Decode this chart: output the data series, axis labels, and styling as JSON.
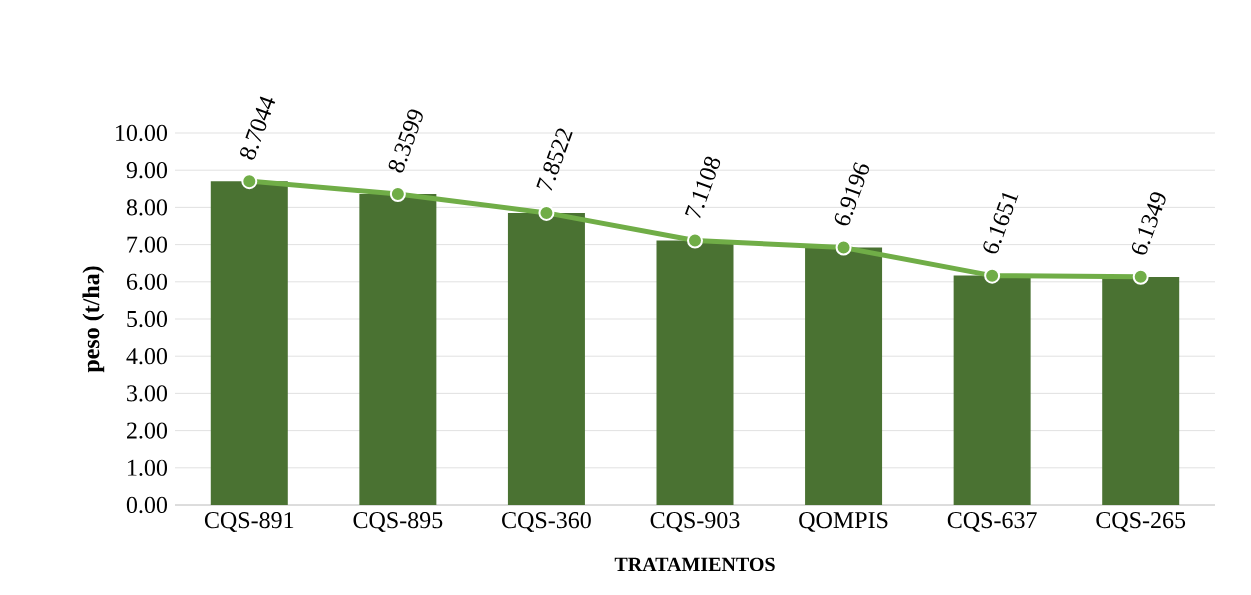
{
  "chart_data": {
    "type": "bar",
    "xlabel": "TRATAMIENTOS",
    "ylabel": "peso (t/ha)",
    "categories": [
      "CQS-891",
      "CQS-895",
      "CQS-360",
      "CQS-903",
      "QOMPIS",
      "CQS-637",
      "CQS-265"
    ],
    "series": [
      {
        "color": "#4a7232",
        "values": [
          8.7,
          8.36,
          7.85,
          7.11,
          6.92,
          6.17,
          6.13
        ]
      },
      {
        "type": "line",
        "color": "#70ad47",
        "marker": "circle",
        "values": [
          8.7044,
          8.3599,
          7.8522,
          7.1108,
          6.9196,
          6.1651,
          6.1349
        ],
        "value_labels": [
          "8.7044",
          "8.3599",
          "7.8522",
          "7.1108",
          "6.9196",
          "6.1651",
          "6.1349"
        ]
      }
    ],
    "ylim": [
      0,
      10
    ],
    "yticks": [
      {
        "value": 0,
        "label": "0.00"
      },
      {
        "value": 1,
        "label": "1.00"
      },
      {
        "value": 2,
        "label": "2.00"
      },
      {
        "value": 3,
        "label": "3.00"
      },
      {
        "value": 4,
        "label": "4.00"
      },
      {
        "value": 5,
        "label": "5.00"
      },
      {
        "value": 6,
        "label": "6.00"
      },
      {
        "value": 7,
        "label": "7.00"
      },
      {
        "value": 8,
        "label": "8.00"
      },
      {
        "value": 9,
        "label": "9.00"
      },
      {
        "value": 10,
        "label": "10.00"
      }
    ],
    "grid": "y"
  }
}
